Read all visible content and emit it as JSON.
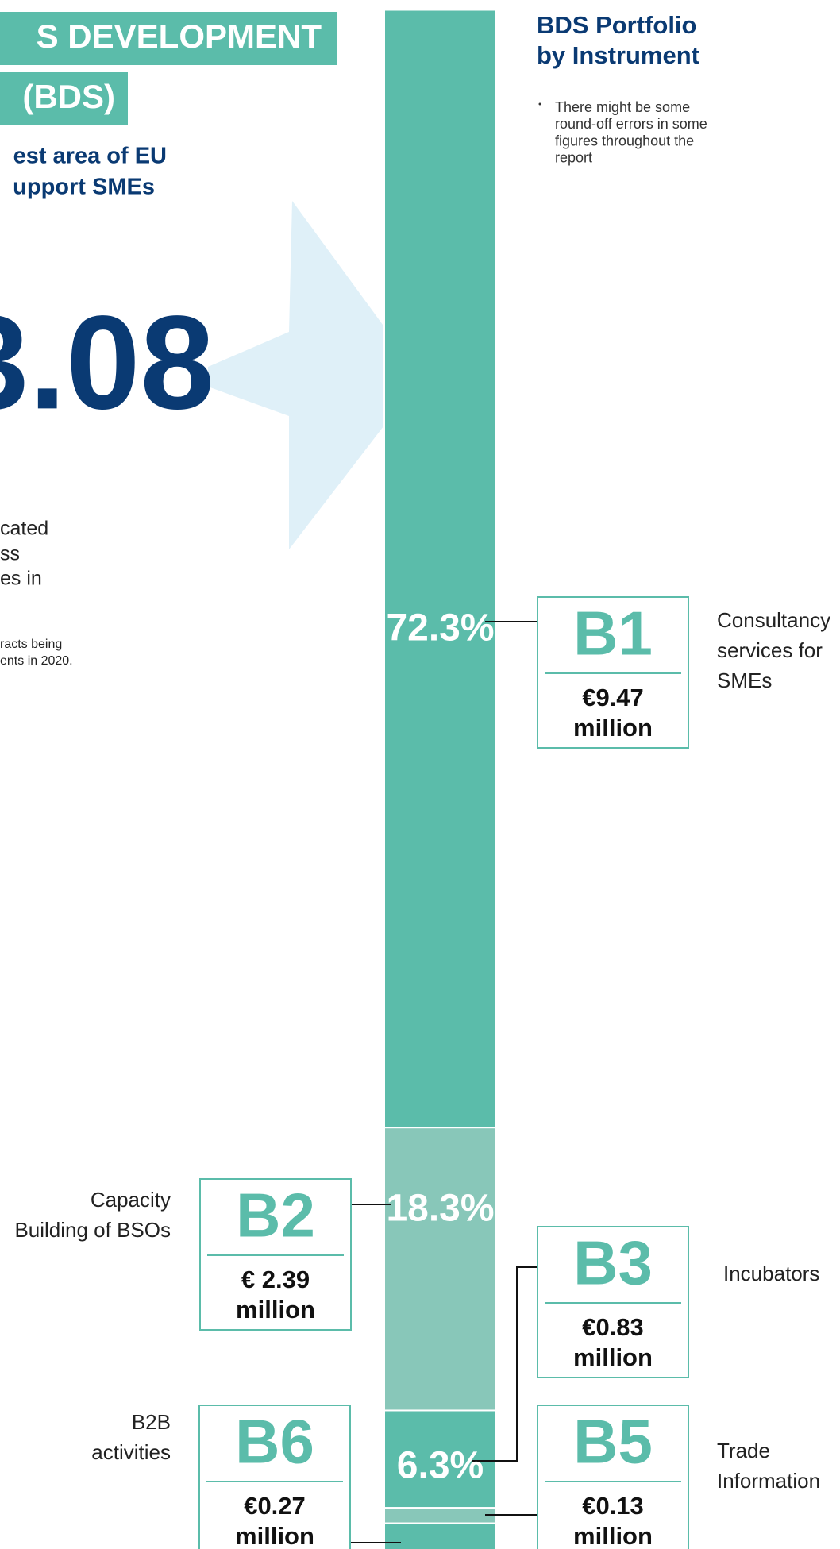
{
  "page_text": {
    "banner_1": "S DEVELOPMENT",
    "banner_2": "(BDS)",
    "subtitle_lines": [
      "est area of EU",
      "upport SMEs"
    ],
    "total": "3.08",
    "desc_lines": [
      "cated",
      "ss",
      "es in"
    ],
    "footnote_lines": [
      "racts being",
      "ents in 2020."
    ]
  },
  "chart_data": {
    "type": "stacked-column",
    "title": [
      "BDS Portfolio",
      "by Instrument"
    ],
    "note_lines": [
      "There might be some",
      "round-off errors in some",
      "figures throughout the",
      "report"
    ],
    "categories": [
      "B1",
      "B2",
      "B3",
      "B5",
      "B6"
    ],
    "values": [
      72.3,
      18.3,
      6.3,
      1.0,
      2.1
    ],
    "value_labels": [
      "72.3%",
      "18.3%",
      "6.3%",
      null,
      null
    ],
    "amounts": [
      [
        "€9.47",
        "million"
      ],
      [
        "€ 2.39",
        "million"
      ],
      [
        "€0.83",
        "million"
      ],
      [
        "€0.13",
        "million"
      ],
      [
        "€0.27",
        "million"
      ]
    ],
    "descriptions": [
      [
        "Consultancy",
        "services for",
        "SMEs"
      ],
      [
        "Capacity",
        "Building of BSOs"
      ],
      [
        "Incubators"
      ],
      [
        "Trade",
        "Information"
      ],
      [
        "B2B",
        "activities"
      ]
    ],
    "colors": [
      "#5bbcaa",
      "#88c7b9",
      "#5bbcaa",
      "#88c7b9",
      "#5bbcaa"
    ],
    "ylim": [
      0,
      100
    ]
  }
}
